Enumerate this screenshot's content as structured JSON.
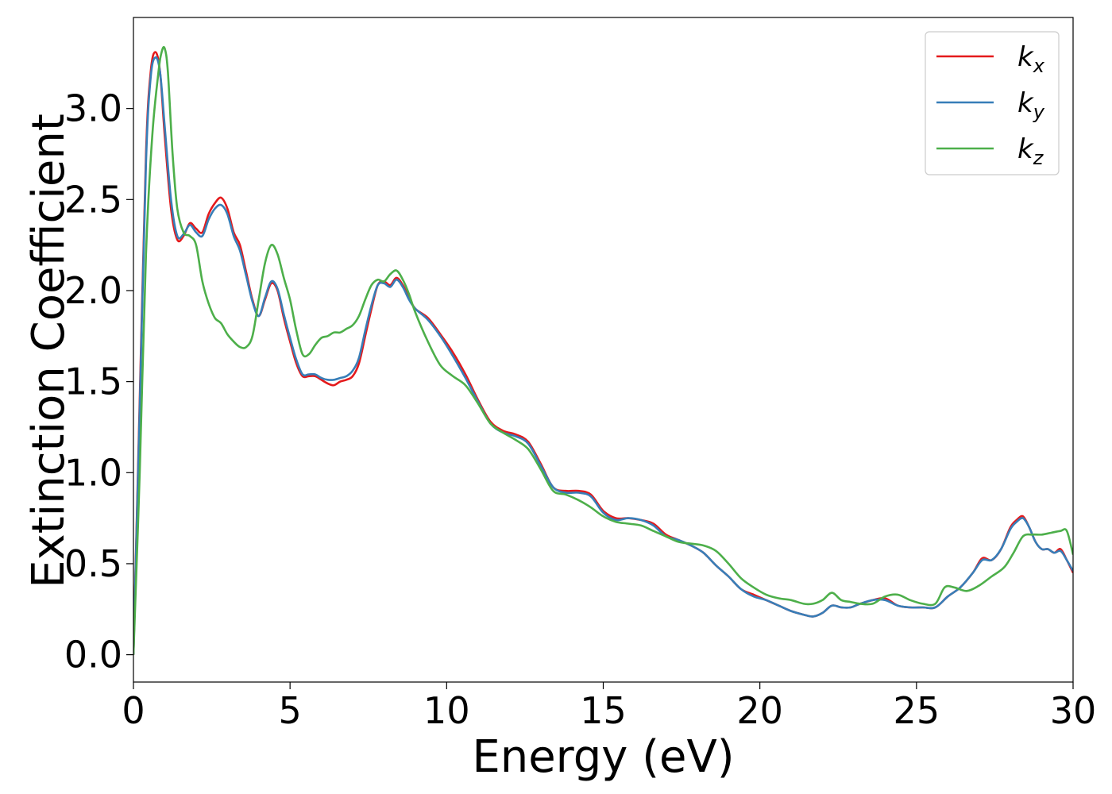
{
  "chart_data": {
    "type": "line",
    "title": "",
    "xlabel": "Energy (eV)",
    "ylabel": "Extinction Coefficient",
    "xlim": [
      0,
      30
    ],
    "ylim": [
      -0.15,
      3.5
    ],
    "xticks": [
      0,
      5,
      10,
      15,
      20,
      25,
      30
    ],
    "xtick_labels": [
      "0",
      "5",
      "10",
      "15",
      "20",
      "25",
      "30"
    ],
    "yticks": [
      0.0,
      0.5,
      1.0,
      1.5,
      2.0,
      2.5,
      3.0
    ],
    "ytick_labels": [
      "0.0",
      "0.5",
      "1.0",
      "1.5",
      "2.0",
      "2.5",
      "3.0"
    ],
    "grid": false,
    "legend_position": "top-right",
    "series": [
      {
        "name": "k",
        "subscript": "x",
        "color": "#e41a1c",
        "x": [
          0,
          0.2,
          0.4,
          0.55,
          0.7,
          0.85,
          1.0,
          1.2,
          1.4,
          1.6,
          1.8,
          2.0,
          2.2,
          2.4,
          2.6,
          2.8,
          3.0,
          3.2,
          3.4,
          3.6,
          3.8,
          4.0,
          4.2,
          4.4,
          4.6,
          4.8,
          5.0,
          5.2,
          5.4,
          5.6,
          5.8,
          6.0,
          6.2,
          6.4,
          6.6,
          6.8,
          7.0,
          7.2,
          7.4,
          7.6,
          7.8,
          8.0,
          8.2,
          8.4,
          8.6,
          8.8,
          9.0,
          9.4,
          9.8,
          10.2,
          10.6,
          11.0,
          11.4,
          11.8,
          12.2,
          12.6,
          13.0,
          13.4,
          13.8,
          14.2,
          14.6,
          15.0,
          15.4,
          15.8,
          16.2,
          16.6,
          17.0,
          17.4,
          17.8,
          18.2,
          18.6,
          19.0,
          19.4,
          19.8,
          20.2,
          20.6,
          21.0,
          21.4,
          21.7,
          22.0,
          22.3,
          22.6,
          22.9,
          23.2,
          23.6,
          24.0,
          24.4,
          24.8,
          25.2,
          25.6,
          26.0,
          26.4,
          26.8,
          27.1,
          27.4,
          27.7,
          28.0,
          28.2,
          28.4,
          28.6,
          28.8,
          29.0,
          29.2,
          29.4,
          29.6,
          29.8,
          30.0
        ],
        "y": [
          0.0,
          1.4,
          2.75,
          3.2,
          3.31,
          3.2,
          2.85,
          2.45,
          2.28,
          2.3,
          2.37,
          2.34,
          2.32,
          2.42,
          2.48,
          2.51,
          2.45,
          2.32,
          2.25,
          2.1,
          1.95,
          1.86,
          1.95,
          2.04,
          2.0,
          1.85,
          1.72,
          1.6,
          1.53,
          1.53,
          1.53,
          1.51,
          1.49,
          1.48,
          1.5,
          1.51,
          1.53,
          1.6,
          1.75,
          1.9,
          2.03,
          2.05,
          2.03,
          2.07,
          2.03,
          1.96,
          1.9,
          1.85,
          1.76,
          1.66,
          1.54,
          1.4,
          1.28,
          1.23,
          1.21,
          1.17,
          1.05,
          0.92,
          0.9,
          0.9,
          0.88,
          0.79,
          0.75,
          0.75,
          0.74,
          0.72,
          0.66,
          0.63,
          0.6,
          0.56,
          0.49,
          0.43,
          0.36,
          0.33,
          0.3,
          0.27,
          0.24,
          0.22,
          0.21,
          0.23,
          0.27,
          0.26,
          0.26,
          0.28,
          0.3,
          0.31,
          0.27,
          0.26,
          0.26,
          0.26,
          0.32,
          0.37,
          0.45,
          0.53,
          0.52,
          0.58,
          0.7,
          0.74,
          0.76,
          0.7,
          0.62,
          0.58,
          0.58,
          0.56,
          0.58,
          0.52,
          0.45
        ]
      },
      {
        "name": "k",
        "subscript": "y",
        "color": "#377eb8",
        "x": [
          0,
          0.2,
          0.4,
          0.55,
          0.7,
          0.85,
          1.0,
          1.2,
          1.4,
          1.6,
          1.8,
          2.0,
          2.2,
          2.4,
          2.6,
          2.8,
          3.0,
          3.2,
          3.4,
          3.6,
          3.8,
          4.0,
          4.2,
          4.4,
          4.6,
          4.8,
          5.0,
          5.2,
          5.4,
          5.6,
          5.8,
          6.0,
          6.2,
          6.4,
          6.6,
          6.8,
          7.0,
          7.2,
          7.4,
          7.6,
          7.8,
          8.0,
          8.2,
          8.4,
          8.6,
          8.8,
          9.0,
          9.4,
          9.8,
          10.2,
          10.6,
          11.0,
          11.4,
          11.8,
          12.2,
          12.6,
          13.0,
          13.4,
          13.8,
          14.2,
          14.6,
          15.0,
          15.4,
          15.8,
          16.2,
          16.6,
          17.0,
          17.4,
          17.8,
          18.2,
          18.6,
          19.0,
          19.4,
          19.8,
          20.2,
          20.6,
          21.0,
          21.4,
          21.7,
          22.0,
          22.3,
          22.6,
          22.9,
          23.2,
          23.6,
          24.0,
          24.4,
          24.8,
          25.2,
          25.6,
          26.0,
          26.4,
          26.8,
          27.1,
          27.4,
          27.7,
          28.0,
          28.2,
          28.4,
          28.6,
          28.8,
          29.0,
          29.2,
          29.4,
          29.6,
          29.8,
          30.0
        ],
        "y": [
          0.0,
          1.35,
          2.7,
          3.17,
          3.28,
          3.2,
          2.9,
          2.5,
          2.3,
          2.31,
          2.36,
          2.32,
          2.3,
          2.39,
          2.45,
          2.47,
          2.42,
          2.3,
          2.22,
          2.08,
          1.94,
          1.86,
          1.96,
          2.05,
          2.01,
          1.87,
          1.74,
          1.62,
          1.54,
          1.54,
          1.54,
          1.52,
          1.51,
          1.51,
          1.52,
          1.53,
          1.56,
          1.63,
          1.78,
          1.92,
          2.03,
          2.04,
          2.02,
          2.06,
          2.02,
          1.95,
          1.9,
          1.84,
          1.75,
          1.64,
          1.52,
          1.39,
          1.27,
          1.22,
          1.2,
          1.16,
          1.04,
          0.92,
          0.89,
          0.89,
          0.87,
          0.78,
          0.74,
          0.75,
          0.74,
          0.71,
          0.65,
          0.63,
          0.6,
          0.56,
          0.49,
          0.43,
          0.36,
          0.32,
          0.3,
          0.27,
          0.24,
          0.22,
          0.21,
          0.23,
          0.27,
          0.26,
          0.26,
          0.28,
          0.3,
          0.3,
          0.27,
          0.26,
          0.26,
          0.26,
          0.32,
          0.37,
          0.45,
          0.52,
          0.52,
          0.58,
          0.69,
          0.73,
          0.75,
          0.7,
          0.62,
          0.58,
          0.58,
          0.56,
          0.57,
          0.52,
          0.46
        ]
      },
      {
        "name": "k",
        "subscript": "z",
        "color": "#4daf4a",
        "x": [
          0,
          0.2,
          0.4,
          0.6,
          0.8,
          0.9,
          1.0,
          1.1,
          1.25,
          1.4,
          1.6,
          1.8,
          2.0,
          2.2,
          2.4,
          2.6,
          2.8,
          3.0,
          3.2,
          3.4,
          3.6,
          3.8,
          4.0,
          4.2,
          4.4,
          4.6,
          4.8,
          5.0,
          5.2,
          5.4,
          5.6,
          5.8,
          6.0,
          6.2,
          6.4,
          6.6,
          6.8,
          7.0,
          7.2,
          7.4,
          7.6,
          7.8,
          8.0,
          8.2,
          8.4,
          8.6,
          8.8,
          9.0,
          9.4,
          9.8,
          10.2,
          10.6,
          11.0,
          11.4,
          11.8,
          12.2,
          12.6,
          13.0,
          13.4,
          13.8,
          14.2,
          14.6,
          15.0,
          15.4,
          15.8,
          16.2,
          16.6,
          17.0,
          17.4,
          17.8,
          18.2,
          18.6,
          19.0,
          19.4,
          19.8,
          20.2,
          20.6,
          21.0,
          21.4,
          21.7,
          22.0,
          22.3,
          22.6,
          22.9,
          23.2,
          23.6,
          24.0,
          24.4,
          24.8,
          25.2,
          25.6,
          25.9,
          26.2,
          26.6,
          27.0,
          27.4,
          27.8,
          28.1,
          28.4,
          28.7,
          29.0,
          29.3,
          29.6,
          29.8,
          30.0
        ],
        "y": [
          0.0,
          1.0,
          2.2,
          2.85,
          3.2,
          3.31,
          3.33,
          3.2,
          2.75,
          2.45,
          2.32,
          2.3,
          2.25,
          2.05,
          1.93,
          1.85,
          1.82,
          1.76,
          1.72,
          1.69,
          1.69,
          1.75,
          1.95,
          2.15,
          2.25,
          2.2,
          2.07,
          1.95,
          1.78,
          1.65,
          1.65,
          1.7,
          1.74,
          1.75,
          1.77,
          1.77,
          1.79,
          1.81,
          1.86,
          1.95,
          2.03,
          2.06,
          2.05,
          2.09,
          2.11,
          2.06,
          1.98,
          1.88,
          1.72,
          1.59,
          1.53,
          1.48,
          1.38,
          1.27,
          1.22,
          1.18,
          1.13,
          1.02,
          0.9,
          0.88,
          0.85,
          0.81,
          0.76,
          0.73,
          0.72,
          0.71,
          0.68,
          0.65,
          0.62,
          0.61,
          0.6,
          0.57,
          0.5,
          0.42,
          0.37,
          0.33,
          0.31,
          0.3,
          0.28,
          0.28,
          0.3,
          0.34,
          0.3,
          0.29,
          0.28,
          0.28,
          0.32,
          0.33,
          0.3,
          0.28,
          0.28,
          0.37,
          0.37,
          0.35,
          0.38,
          0.43,
          0.48,
          0.56,
          0.65,
          0.66,
          0.66,
          0.67,
          0.68,
          0.68,
          0.55
        ]
      }
    ]
  }
}
